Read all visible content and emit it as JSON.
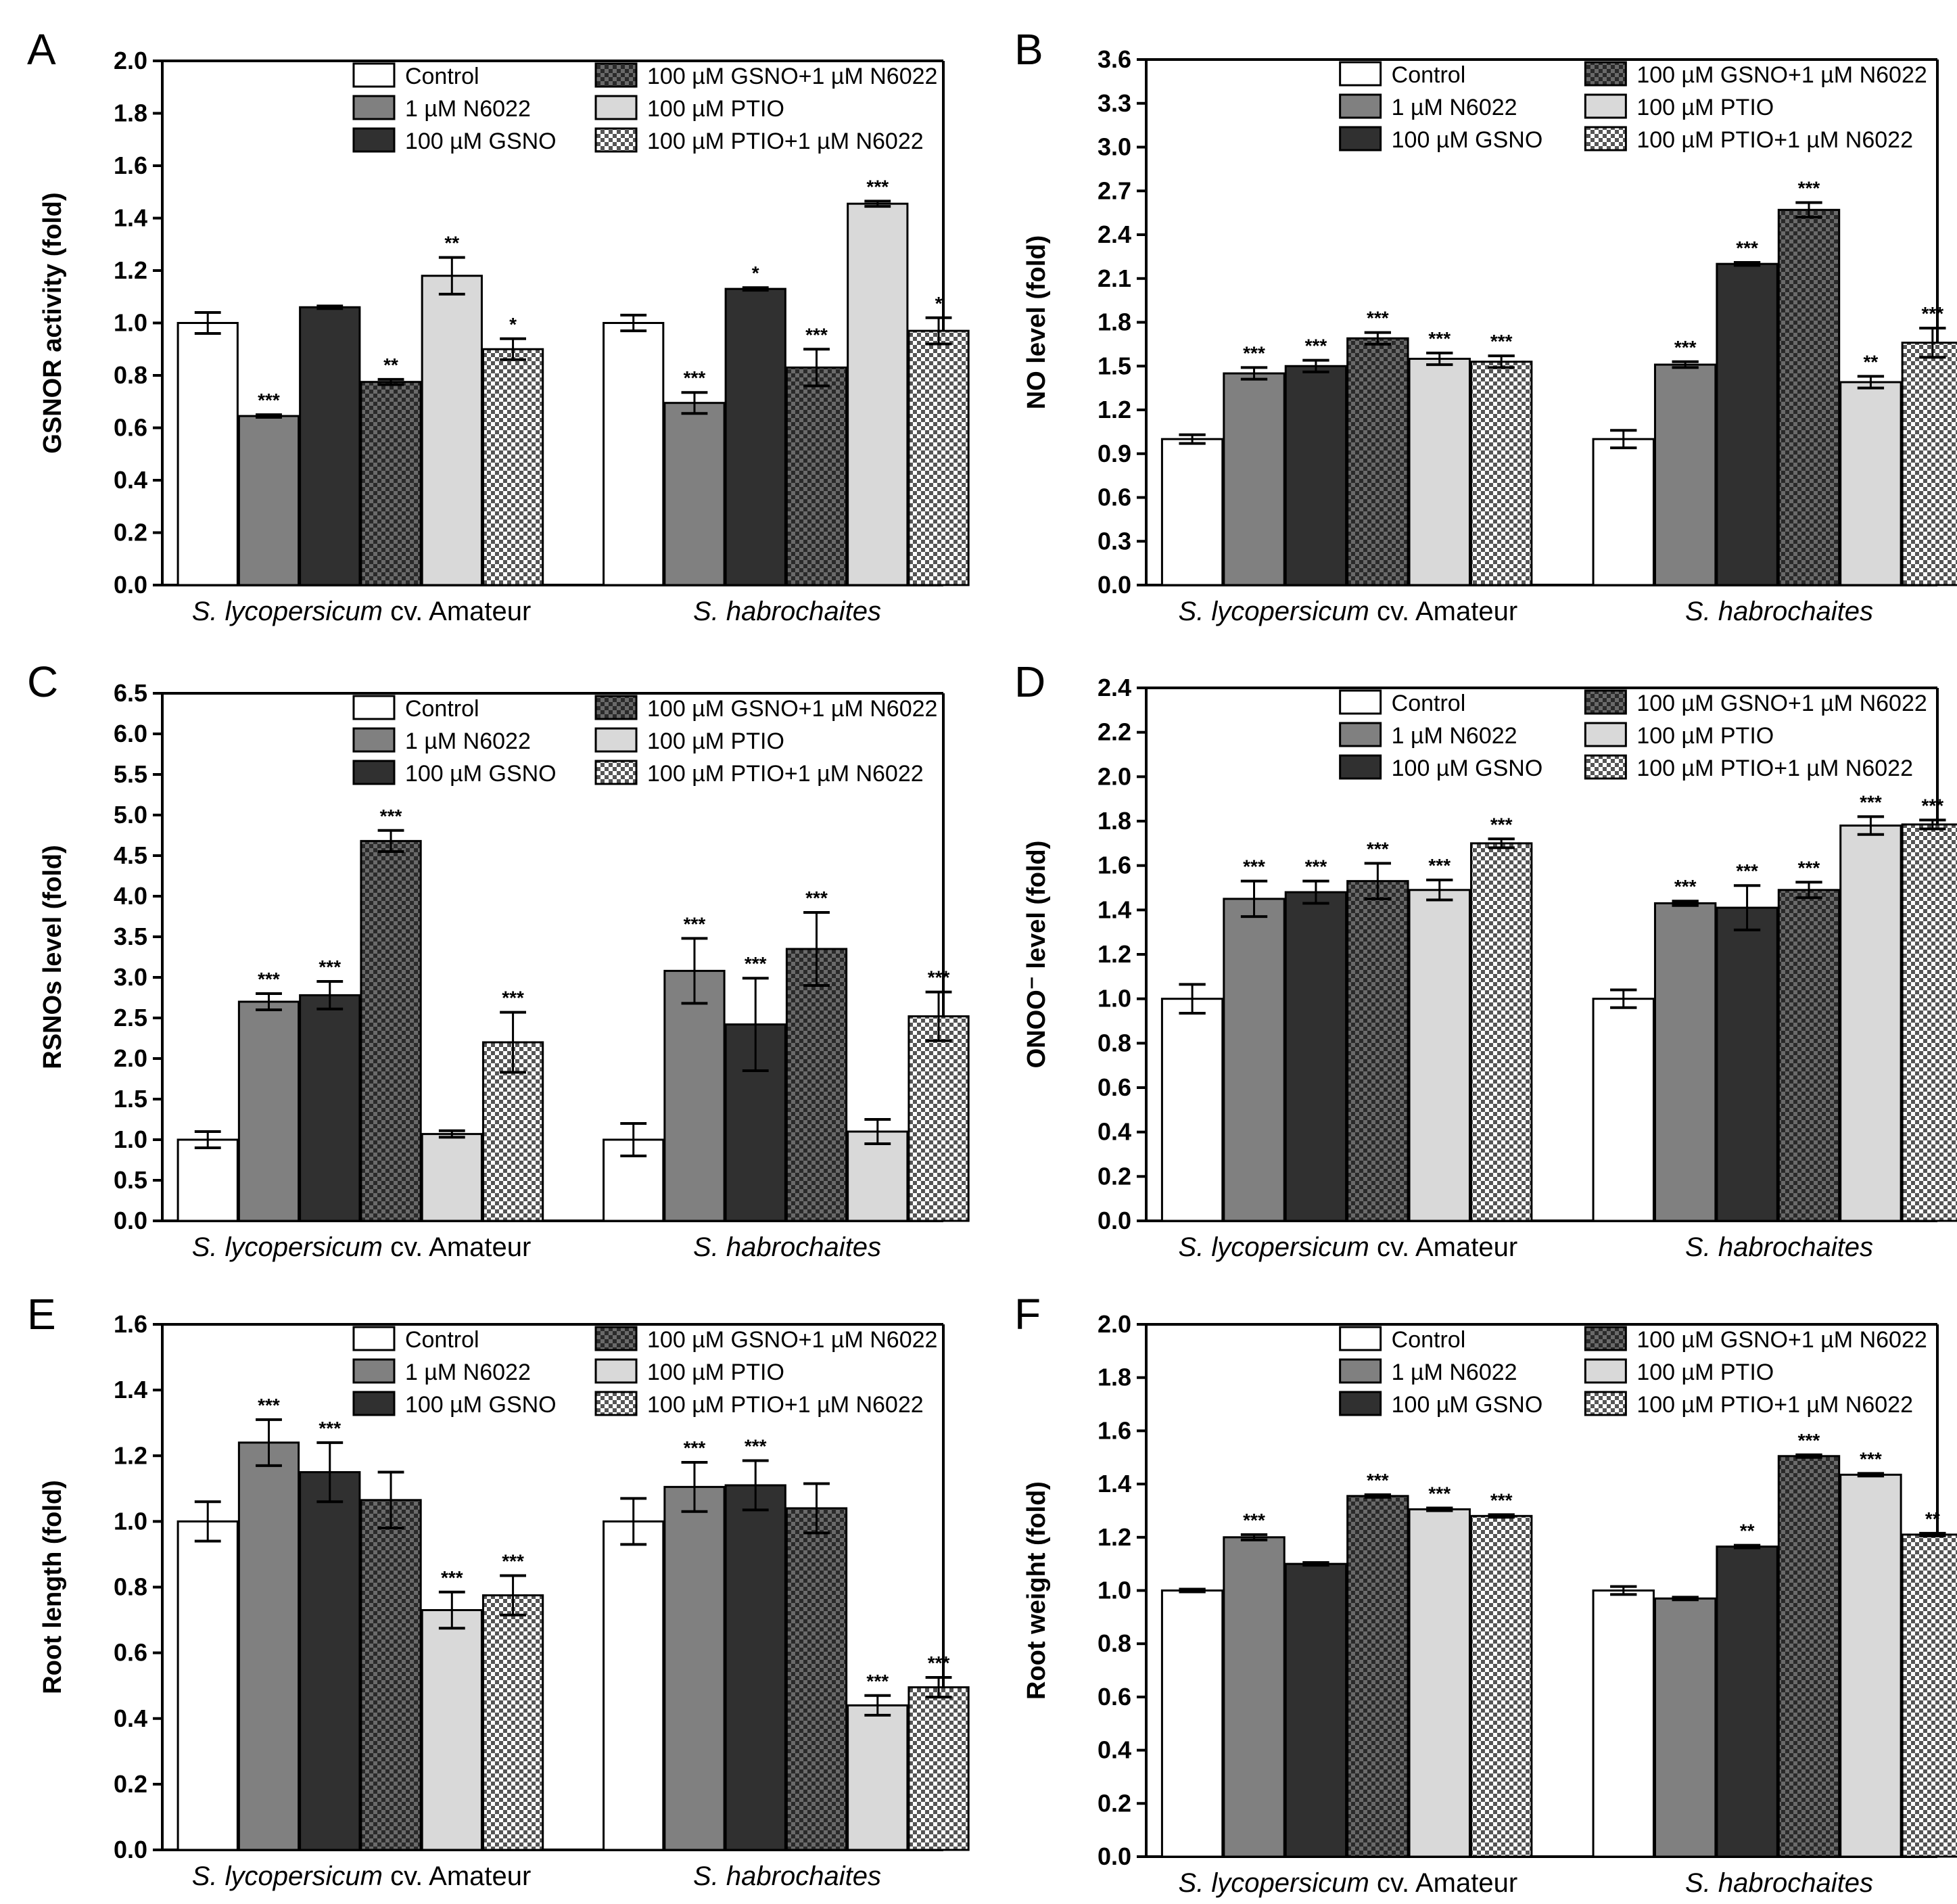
{
  "legend_labels": [
    "Control",
    "1 µM N6022",
    "100 µM GSNO",
    "100 µM GSNO+1 µM N6022",
    "100 µM PTIO",
    "100 µM PTIO+1 µM N6022"
  ],
  "category_labels": [
    {
      "italic": "S. lycopersicum",
      "normal": " cv. Amateur"
    },
    {
      "italic": "S. habrochaites",
      "normal": ""
    }
  ],
  "colors": {
    "control": "#ffffff",
    "n6022": "#808080",
    "gsno": "#303030",
    "gsno_n6022": "checker-dark",
    "ptio": "#d9d9d9",
    "ptio_n6022": "checker-light"
  },
  "chart_data": [
    {
      "type": "bar",
      "panel": "A",
      "ylabel": "GSNOR activity (fold)",
      "ylim": [
        0,
        2.0
      ],
      "yticks": [
        "0.0",
        "0.2",
        "0.4",
        "0.6",
        "0.8",
        "1.0",
        "1.2",
        "1.4",
        "1.6",
        "1.8",
        "2.0"
      ],
      "categories": [
        "S. lycopersicum cv. Amateur",
        "S. habrochaites"
      ],
      "series": [
        {
          "name": "Control",
          "values": [
            1.0,
            1.0
          ],
          "errors": [
            0.04,
            0.03
          ],
          "sig": [
            "",
            ""
          ]
        },
        {
          "name": "1 µM N6022",
          "values": [
            0.645,
            0.695
          ],
          "errors": [
            0.005,
            0.04
          ],
          "sig": [
            "***",
            "***"
          ]
        },
        {
          "name": "100 µM GSNO",
          "values": [
            1.06,
            1.13
          ],
          "errors": [
            0.005,
            0.005
          ],
          "sig": [
            "",
            "*"
          ]
        },
        {
          "name": "100 µM GSNO+1 µM N6022",
          "values": [
            0.775,
            0.83
          ],
          "errors": [
            0.01,
            0.07
          ],
          "sig": [
            "**",
            "***"
          ]
        },
        {
          "name": "100 µM PTIO",
          "values": [
            1.18,
            1.455
          ],
          "errors": [
            0.07,
            0.01
          ],
          "sig": [
            "**",
            "***"
          ]
        },
        {
          "name": "100 µM PTIO+1 µM N6022",
          "values": [
            0.9,
            0.97
          ],
          "errors": [
            0.04,
            0.05
          ],
          "sig": [
            "*",
            "*"
          ]
        }
      ]
    },
    {
      "type": "bar",
      "panel": "B",
      "ylabel": "NO level (fold)",
      "ylim": [
        0,
        3.6
      ],
      "yticks": [
        "0.0",
        "0.3",
        "0.6",
        "0.9",
        "1.2",
        "1.5",
        "1.8",
        "2.1",
        "2.4",
        "2.7",
        "3.0",
        "3.3",
        "3.6"
      ],
      "categories": [
        "S. lycopersicum cv. Amateur",
        "S. habrochaites"
      ],
      "series": [
        {
          "name": "Control",
          "values": [
            1.0,
            1.0
          ],
          "errors": [
            0.03,
            0.06
          ],
          "sig": [
            "",
            ""
          ]
        },
        {
          "name": "1 µM N6022",
          "values": [
            1.45,
            1.51
          ],
          "errors": [
            0.04,
            0.02
          ],
          "sig": [
            "***",
            "***"
          ]
        },
        {
          "name": "100 µM GSNO",
          "values": [
            1.5,
            2.2
          ],
          "errors": [
            0.04,
            0.01
          ],
          "sig": [
            "***",
            "***"
          ]
        },
        {
          "name": "100 µM GSNO+1 µM N6022",
          "values": [
            1.69,
            2.57
          ],
          "errors": [
            0.04,
            0.05
          ],
          "sig": [
            "***",
            "***"
          ]
        },
        {
          "name": "100 µM PTIO",
          "values": [
            1.55,
            1.39
          ],
          "errors": [
            0.04,
            0.04
          ],
          "sig": [
            "***",
            "**"
          ]
        },
        {
          "name": "100 µM PTIO+1 µM N6022",
          "values": [
            1.53,
            1.66
          ],
          "errors": [
            0.04,
            0.1
          ],
          "sig": [
            "***",
            "***"
          ]
        }
      ]
    },
    {
      "type": "bar",
      "panel": "C",
      "ylabel": "RSNOs level (fold)",
      "ylim": [
        0,
        6.5
      ],
      "yticks": [
        "0.0",
        "0.5",
        "1.0",
        "1.5",
        "2.0",
        "2.5",
        "3.0",
        "3.5",
        "4.0",
        "4.5",
        "5.0",
        "5.5",
        "6.0",
        "6.5"
      ],
      "categories": [
        "S. lycopersicum cv. Amateur",
        "S. habrochaites"
      ],
      "series": [
        {
          "name": "Control",
          "values": [
            1.0,
            1.0
          ],
          "errors": [
            0.1,
            0.2
          ],
          "sig": [
            "",
            ""
          ]
        },
        {
          "name": "1 µM N6022",
          "values": [
            2.7,
            3.08
          ],
          "errors": [
            0.1,
            0.4
          ],
          "sig": [
            "***",
            "***"
          ]
        },
        {
          "name": "100 µM GSNO",
          "values": [
            2.78,
            2.42
          ],
          "errors": [
            0.17,
            0.57
          ],
          "sig": [
            "***",
            "***"
          ]
        },
        {
          "name": "100 µM GSNO+1 µM N6022",
          "values": [
            4.68,
            3.35
          ],
          "errors": [
            0.13,
            0.45
          ],
          "sig": [
            "***",
            "***"
          ]
        },
        {
          "name": "100 µM PTIO",
          "values": [
            1.07,
            1.1
          ],
          "errors": [
            0.04,
            0.15
          ],
          "sig": [
            "",
            ""
          ]
        },
        {
          "name": "100 µM PTIO+1 µM N6022",
          "values": [
            2.2,
            2.52
          ],
          "errors": [
            0.37,
            0.3
          ],
          "sig": [
            "***",
            "***"
          ]
        }
      ]
    },
    {
      "type": "bar",
      "panel": "D",
      "ylabel": "ONOO⁻ level (fold)",
      "ylim": [
        0,
        2.4
      ],
      "yticks": [
        "0.0",
        "0.2",
        "0.4",
        "0.6",
        "0.8",
        "1.0",
        "1.2",
        "1.4",
        "1.6",
        "1.8",
        "2.0",
        "2.2",
        "2.4"
      ],
      "categories": [
        "S. lycopersicum cv. Amateur",
        "S. habrochaites"
      ],
      "series": [
        {
          "name": "Control",
          "values": [
            1.0,
            1.0
          ],
          "errors": [
            0.065,
            0.04
          ],
          "sig": [
            "",
            ""
          ]
        },
        {
          "name": "1 µM N6022",
          "values": [
            1.45,
            1.43
          ],
          "errors": [
            0.08,
            0.01
          ],
          "sig": [
            "***",
            "***"
          ]
        },
        {
          "name": "100 µM GSNO",
          "values": [
            1.48,
            1.41
          ],
          "errors": [
            0.05,
            0.1
          ],
          "sig": [
            "***",
            "***"
          ]
        },
        {
          "name": "100 µM GSNO+1 µM N6022",
          "values": [
            1.53,
            1.49
          ],
          "errors": [
            0.08,
            0.035
          ],
          "sig": [
            "***",
            "***"
          ]
        },
        {
          "name": "100 µM PTIO",
          "values": [
            1.49,
            1.78
          ],
          "errors": [
            0.045,
            0.04
          ],
          "sig": [
            "***",
            "***"
          ]
        },
        {
          "name": "100 µM PTIO+1 µM N6022",
          "values": [
            1.7,
            1.785
          ],
          "errors": [
            0.02,
            0.02
          ],
          "sig": [
            "***",
            "***"
          ]
        }
      ]
    },
    {
      "type": "bar",
      "panel": "E",
      "ylabel": "Root length (fold)",
      "ylim": [
        0,
        1.6
      ],
      "yticks": [
        "0.0",
        "0.2",
        "0.4",
        "0.6",
        "0.8",
        "1.0",
        "1.2",
        "1.4",
        "1.6"
      ],
      "categories": [
        "S. lycopersicum cv. Amateur",
        "S. habrochaites"
      ],
      "series": [
        {
          "name": "Control",
          "values": [
            1.0,
            1.0
          ],
          "errors": [
            0.06,
            0.07
          ],
          "sig": [
            "",
            ""
          ]
        },
        {
          "name": "1 µM N6022",
          "values": [
            1.24,
            1.105
          ],
          "errors": [
            0.07,
            0.075
          ],
          "sig": [
            "***",
            "***"
          ]
        },
        {
          "name": "100 µM GSNO",
          "values": [
            1.15,
            1.11
          ],
          "errors": [
            0.09,
            0.075
          ],
          "sig": [
            "***",
            "***"
          ]
        },
        {
          "name": "100 µM GSNO+1 µM N6022",
          "values": [
            1.065,
            1.04
          ],
          "errors": [
            0.085,
            0.075
          ],
          "sig": [
            "",
            ""
          ]
        },
        {
          "name": "100 µM PTIO",
          "values": [
            0.73,
            0.44
          ],
          "errors": [
            0.055,
            0.03
          ],
          "sig": [
            "***",
            "***"
          ]
        },
        {
          "name": "100 µM PTIO+1 µM N6022",
          "values": [
            0.775,
            0.495
          ],
          "errors": [
            0.06,
            0.03
          ],
          "sig": [
            "***",
            "***"
          ]
        }
      ]
    },
    {
      "type": "bar",
      "panel": "F",
      "ylabel": "Root weight (fold)",
      "ylim": [
        0,
        2.0
      ],
      "yticks": [
        "0.0",
        "0.2",
        "0.4",
        "0.6",
        "0.8",
        "1.0",
        "1.2",
        "1.4",
        "1.6",
        "1.8",
        "2.0"
      ],
      "categories": [
        "S. lycopersicum cv. Amateur",
        "S. habrochaites"
      ],
      "series": [
        {
          "name": "Control",
          "values": [
            1.0,
            1.0
          ],
          "errors": [
            0.005,
            0.015
          ],
          "sig": [
            "",
            ""
          ]
        },
        {
          "name": "1 µM N6022",
          "values": [
            1.2,
            0.97
          ],
          "errors": [
            0.01,
            0.005
          ],
          "sig": [
            "***",
            ""
          ]
        },
        {
          "name": "100 µM GSNO",
          "values": [
            1.1,
            1.165
          ],
          "errors": [
            0.005,
            0.005
          ],
          "sig": [
            "",
            "**"
          ]
        },
        {
          "name": "100 µM GSNO+1 µM N6022",
          "values": [
            1.355,
            1.505
          ],
          "errors": [
            0.005,
            0.005
          ],
          "sig": [
            "***",
            "***"
          ]
        },
        {
          "name": "100 µM PTIO",
          "values": [
            1.305,
            1.435
          ],
          "errors": [
            0.005,
            0.005
          ],
          "sig": [
            "***",
            "***"
          ]
        },
        {
          "name": "100 µM PTIO+1 µM N6022",
          "values": [
            1.28,
            1.21
          ],
          "errors": [
            0.005,
            0.005
          ],
          "sig": [
            "***",
            "**"
          ]
        }
      ]
    }
  ]
}
